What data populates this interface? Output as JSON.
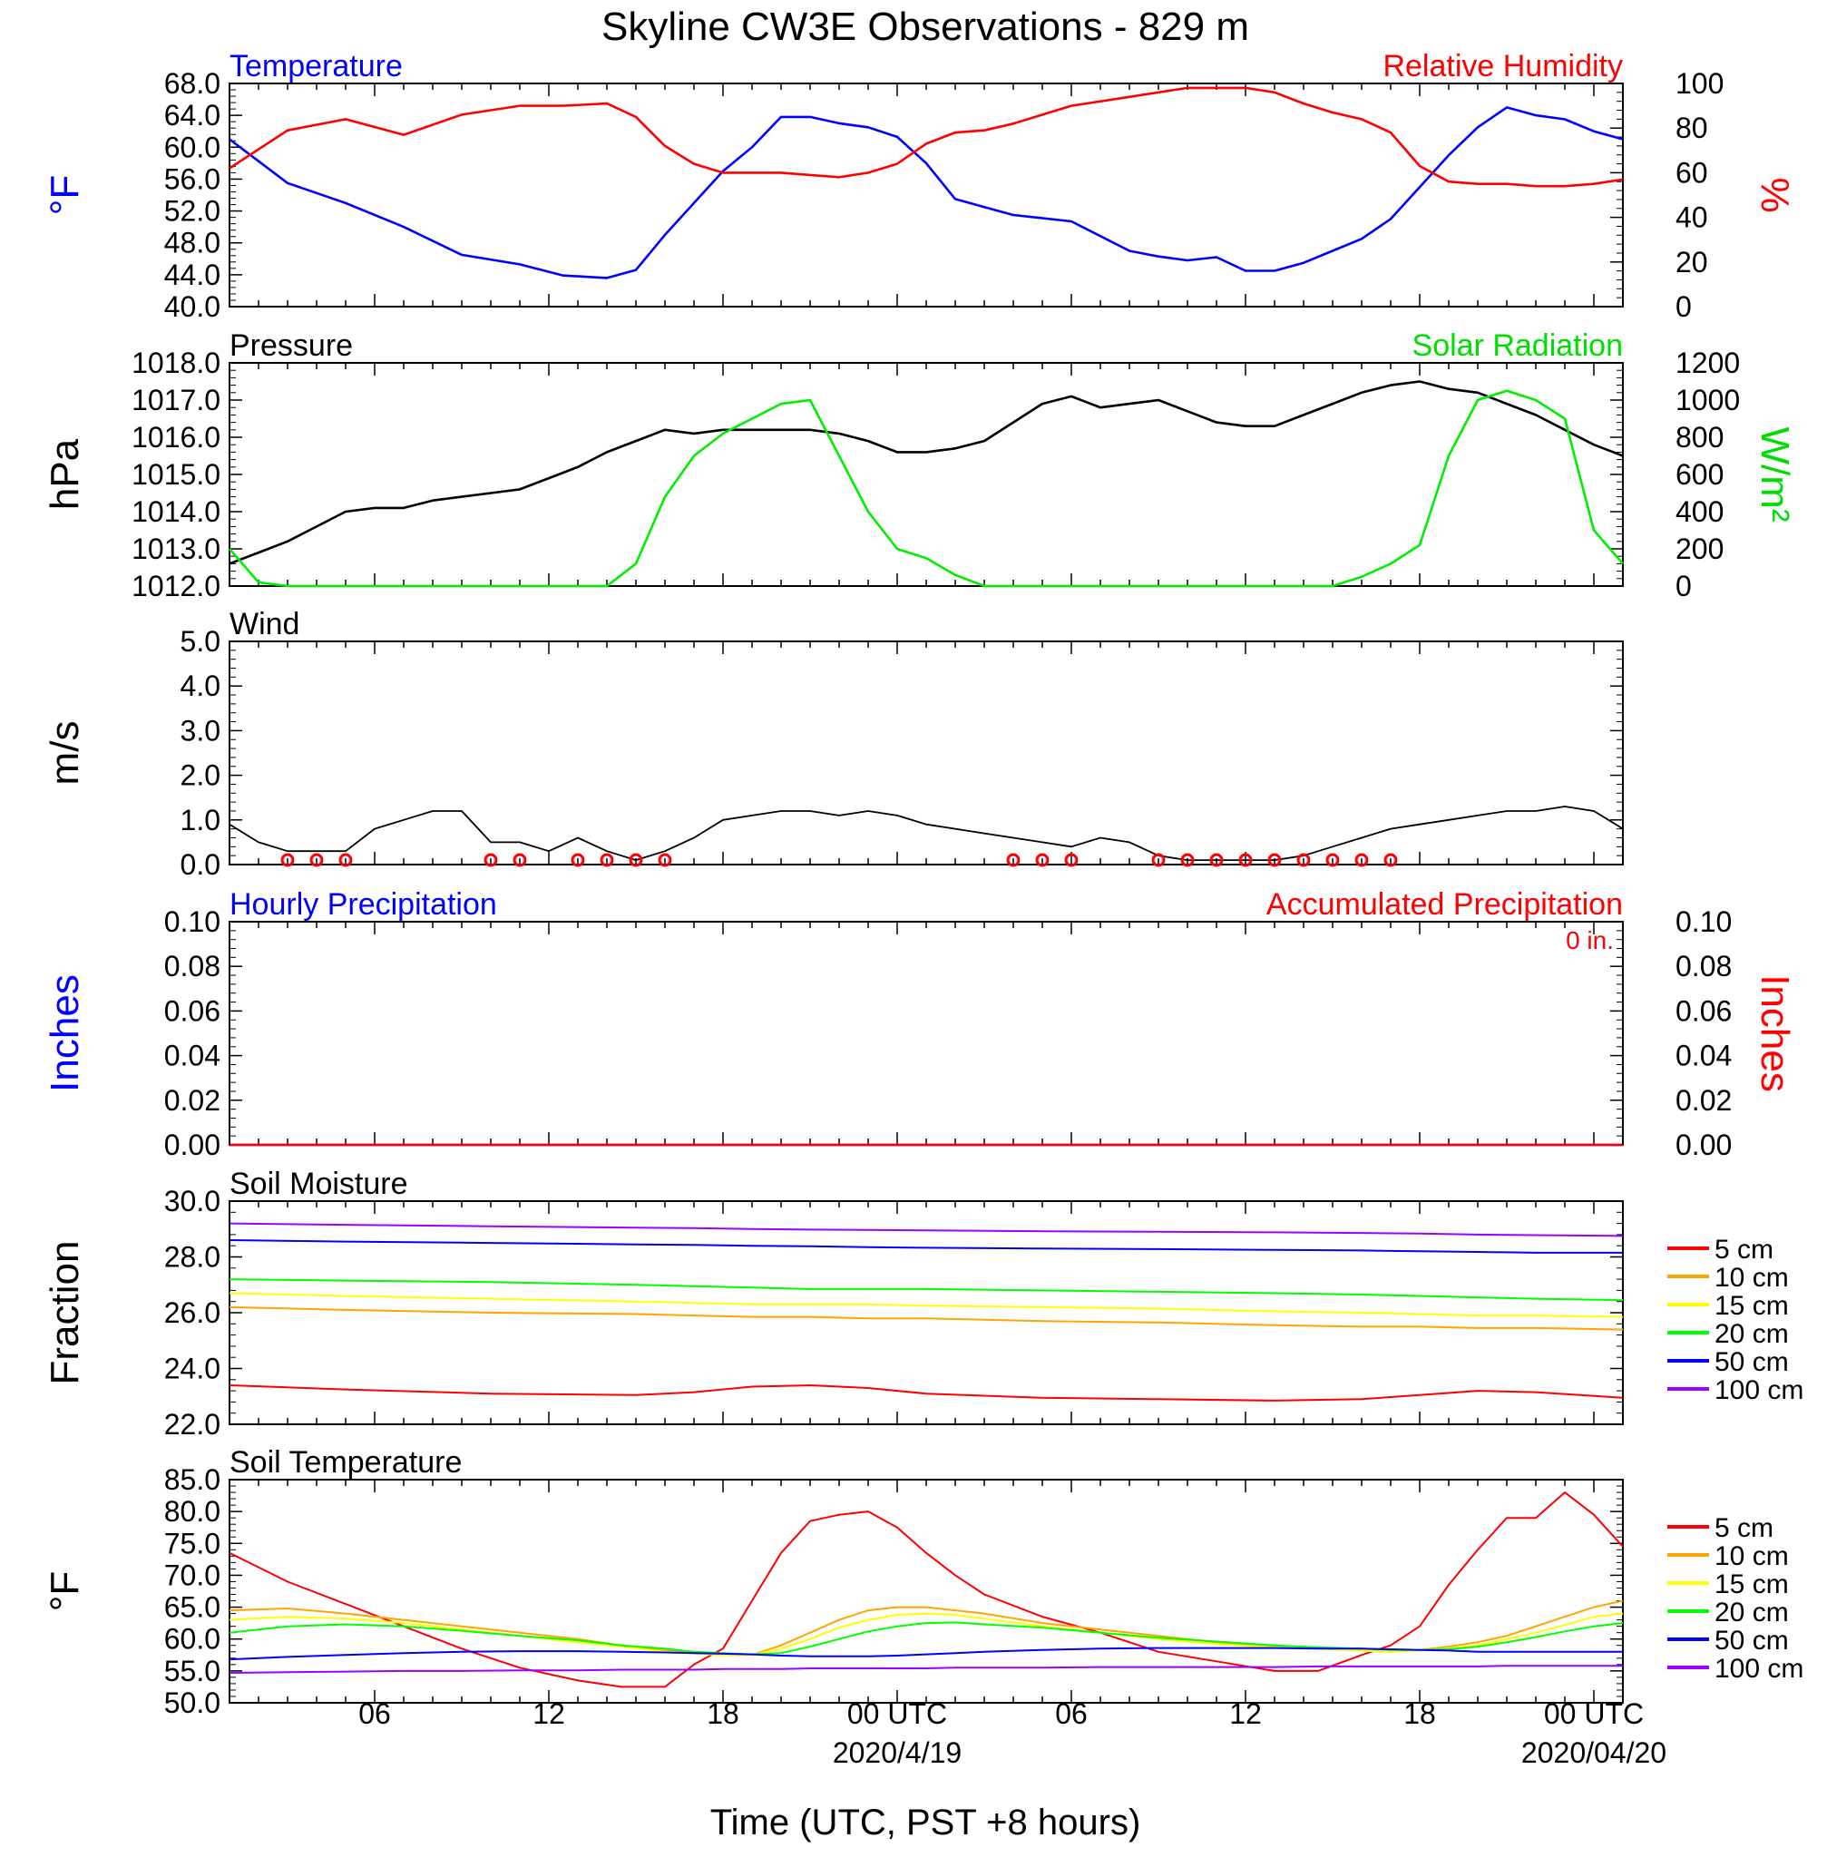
{
  "title": "Skyline CW3E Observations - 829 m",
  "x_axis": {
    "label": "Time (UTC, PST +8 hours)",
    "ticks": [
      "06",
      "12",
      "18",
      "00 UTC",
      "06",
      "12",
      "18",
      "00 UTC"
    ],
    "dates": [
      "2020/4/19",
      "2020/04/20"
    ]
  },
  "chart_data": [
    {
      "type": "line",
      "panel": "temperature-humidity",
      "left_title": "Temperature",
      "right_title": "Relative Humidity",
      "ylabel_left": "°F",
      "ylabel_right": "%",
      "ylim_left": [
        40.0,
        68.0
      ],
      "ylim_right": [
        0,
        100
      ],
      "yticks_left": [
        "68.0",
        "64.0",
        "60.0",
        "56.0",
        "52.0",
        "48.0",
        "44.0",
        "40.0"
      ],
      "yticks_right": [
        "100",
        "80",
        "60",
        "40",
        "20",
        "0"
      ],
      "x_hours": [
        1,
        3,
        5,
        7,
        9,
        11,
        12.5,
        14,
        15,
        16,
        17,
        18,
        19,
        20,
        21,
        22,
        23,
        24,
        25,
        26,
        27,
        28,
        30,
        32,
        33,
        34,
        35,
        36,
        37,
        38,
        39,
        40,
        41,
        42,
        43,
        44,
        45,
        46,
        47,
        48,
        49
      ],
      "series": [
        {
          "name": "Temperature",
          "color": "#0000ff",
          "axis": "left",
          "values": [
            61.0,
            55.5,
            53.0,
            50.0,
            46.5,
            45.3,
            43.9,
            43.6,
            44.6,
            49.0,
            53.0,
            57.0,
            60.0,
            63.8,
            63.8,
            63.0,
            62.5,
            61.3,
            58.0,
            53.5,
            52.5,
            51.5,
            50.7,
            47.0,
            46.3,
            45.8,
            46.2,
            44.5,
            44.5,
            45.5,
            47.0,
            48.5,
            51.0,
            55.0,
            59.0,
            62.5,
            65.0,
            64.0,
            63.5,
            62.0,
            61.0
          ]
        },
        {
          "name": "Relative Humidity",
          "color": "#ff0000",
          "axis": "right",
          "values": [
            62,
            79,
            84,
            77,
            86,
            90,
            90,
            91,
            85,
            72,
            64,
            60,
            60,
            60,
            59,
            58,
            60,
            64,
            73,
            78,
            79,
            82,
            90,
            94,
            96,
            98,
            98,
            98,
            96,
            91,
            87,
            84,
            78,
            63,
            56,
            55,
            55,
            54,
            54,
            55,
            57
          ]
        }
      ]
    },
    {
      "type": "line",
      "panel": "pressure-solar",
      "left_title": "Pressure",
      "right_title": "Solar Radiation",
      "ylabel_left": "hPa",
      "ylabel_right": "W/m²",
      "ylim_left": [
        1012.0,
        1018.0
      ],
      "ylim_right": [
        0,
        1200
      ],
      "yticks_left": [
        "1018.0",
        "1017.0",
        "1016.0",
        "1015.0",
        "1014.0",
        "1013.0",
        "1012.0"
      ],
      "yticks_right": [
        "1200",
        "1000",
        "800",
        "600",
        "400",
        "200",
        "0"
      ],
      "x_hours": [
        1,
        2,
        3,
        4,
        5,
        6,
        7,
        8,
        9,
        10,
        11,
        12,
        13,
        14,
        15,
        16,
        17,
        18,
        19,
        20,
        21,
        22,
        23,
        24,
        25,
        26,
        27,
        28,
        29,
        30,
        31,
        32,
        33,
        34,
        35,
        36,
        37,
        38,
        39,
        40,
        41,
        42,
        43,
        44,
        45,
        46,
        47,
        48,
        49
      ],
      "series": [
        {
          "name": "Pressure",
          "color": "#000000",
          "axis": "left",
          "values": [
            1012.6,
            1012.9,
            1013.2,
            1013.6,
            1014.0,
            1014.1,
            1014.1,
            1014.3,
            1014.4,
            1014.5,
            1014.6,
            1014.9,
            1015.2,
            1015.6,
            1015.9,
            1016.2,
            1016.1,
            1016.2,
            1016.2,
            1016.2,
            1016.2,
            1016.1,
            1015.9,
            1015.6,
            1015.6,
            1015.7,
            1015.9,
            1016.4,
            1016.9,
            1017.1,
            1016.8,
            1016.9,
            1017.0,
            1016.7,
            1016.4,
            1016.3,
            1016.3,
            1016.6,
            1016.9,
            1017.2,
            1017.4,
            1017.5,
            1017.3,
            1017.2,
            1016.9,
            1016.6,
            1016.2,
            1015.8,
            1015.5
          ]
        },
        {
          "name": "Solar Radiation",
          "color": "#00ee00",
          "axis": "right",
          "values": [
            200,
            20,
            0,
            0,
            0,
            0,
            0,
            0,
            0,
            0,
            0,
            0,
            0,
            0,
            120,
            480,
            700,
            820,
            900,
            980,
            1000,
            700,
            400,
            200,
            150,
            60,
            0,
            0,
            0,
            0,
            0,
            0,
            0,
            0,
            0,
            0,
            0,
            0,
            0,
            50,
            120,
            220,
            700,
            1000,
            1050,
            1000,
            900,
            300,
            120
          ]
        }
      ]
    },
    {
      "type": "line",
      "panel": "wind",
      "left_title": "Wind",
      "ylabel_left": "m/s",
      "ylim_left": [
        0.0,
        5.0
      ],
      "yticks_left": [
        "5.0",
        "4.0",
        "3.0",
        "2.0",
        "1.0",
        "0.0"
      ],
      "x_hours": [
        1,
        2,
        3,
        4,
        5,
        6,
        7,
        8,
        9,
        10,
        11,
        12,
        13,
        14,
        15,
        16,
        17,
        18,
        19,
        20,
        21,
        22,
        23,
        24,
        25,
        26,
        27,
        28,
        29,
        30,
        31,
        32,
        33,
        34,
        35,
        36,
        37,
        38,
        39,
        40,
        41,
        42,
        43,
        44,
        45,
        46,
        47,
        48,
        49
      ],
      "series": [
        {
          "name": "Wind speed",
          "color": "#000000",
          "axis": "left",
          "values": [
            0.9,
            0.5,
            0.3,
            0.3,
            0.3,
            0.8,
            1.0,
            1.2,
            1.2,
            0.5,
            0.5,
            0.3,
            0.6,
            0.3,
            0.1,
            0.3,
            0.6,
            1.0,
            1.1,
            1.2,
            1.2,
            1.1,
            1.2,
            1.1,
            0.9,
            0.8,
            0.7,
            0.6,
            0.5,
            0.4,
            0.6,
            0.5,
            0.2,
            0.1,
            0.1,
            0.1,
            0.1,
            0.2,
            0.4,
            0.6,
            0.8,
            0.9,
            1.0,
            1.1,
            1.2,
            1.2,
            1.3,
            1.2,
            0.8
          ]
        }
      ],
      "calm_markers_hours": [
        3,
        4,
        5,
        10,
        11,
        13,
        14,
        15,
        16,
        28,
        29,
        30,
        33,
        34,
        35,
        36,
        37,
        38,
        39,
        40,
        41
      ]
    },
    {
      "type": "line",
      "panel": "precipitation",
      "left_title": "Hourly Precipitation",
      "right_title": "Accumulated Precipitation",
      "annotation": "0 in.",
      "ylabel_left": "Inches",
      "ylabel_right": "Inches",
      "ylim_left": [
        0.0,
        0.1
      ],
      "ylim_right": [
        0.0,
        0.1
      ],
      "yticks_left": [
        "0.10",
        "0.08",
        "0.06",
        "0.04",
        "0.02",
        "0.00"
      ],
      "yticks_right": [
        "0.10",
        "0.08",
        "0.06",
        "0.04",
        "0.02",
        "0.00"
      ],
      "x_hours": [
        1,
        49
      ],
      "series": [
        {
          "name": "Hourly Precipitation",
          "color": "#0000ff",
          "axis": "left",
          "values": [
            0,
            0
          ]
        },
        {
          "name": "Accumulated Precipitation",
          "color": "#ff0000",
          "axis": "right",
          "values": [
            0,
            0
          ]
        }
      ]
    },
    {
      "type": "line",
      "panel": "soil-moisture",
      "left_title": "Soil Moisture",
      "ylabel_left": "Fraction",
      "ylim_left": [
        22.0,
        30.0
      ],
      "yticks_left": [
        "30.0",
        "28.0",
        "26.0",
        "24.0",
        "22.0"
      ],
      "x_hours": [
        1,
        5,
        10,
        15,
        17,
        19,
        21,
        23,
        25,
        29,
        33,
        37,
        40,
        42,
        44,
        46,
        49
      ],
      "series": [
        {
          "name": "5 cm",
          "color": "#ff0000",
          "values": [
            23.4,
            23.25,
            23.1,
            23.05,
            23.15,
            23.35,
            23.4,
            23.3,
            23.1,
            22.95,
            22.9,
            22.85,
            22.9,
            23.05,
            23.2,
            23.15,
            22.95
          ]
        },
        {
          "name": "10 cm",
          "color": "#ffa500",
          "values": [
            26.2,
            26.1,
            26.0,
            25.95,
            25.9,
            25.85,
            25.85,
            25.8,
            25.8,
            25.7,
            25.65,
            25.55,
            25.5,
            25.5,
            25.45,
            25.45,
            25.4
          ]
        },
        {
          "name": "15 cm",
          "color": "#ffff00",
          "values": [
            26.7,
            26.6,
            26.5,
            26.4,
            26.35,
            26.3,
            26.3,
            26.3,
            26.25,
            26.2,
            26.15,
            26.05,
            26.0,
            25.95,
            25.9,
            25.9,
            25.85
          ]
        },
        {
          "name": "20 cm",
          "color": "#00ff00",
          "values": [
            27.2,
            27.15,
            27.1,
            27.0,
            26.95,
            26.9,
            26.85,
            26.85,
            26.85,
            26.8,
            26.75,
            26.7,
            26.65,
            26.6,
            26.55,
            26.5,
            26.45
          ]
        },
        {
          "name": "50 cm",
          "color": "#0000ff",
          "values": [
            28.6,
            28.55,
            28.5,
            28.45,
            28.43,
            28.4,
            28.38,
            28.35,
            28.33,
            28.3,
            28.28,
            28.25,
            28.23,
            28.2,
            28.18,
            28.15,
            28.15
          ]
        },
        {
          "name": "100 cm",
          "color": "#9900ff",
          "values": [
            29.2,
            29.15,
            29.1,
            29.05,
            29.03,
            29.0,
            28.98,
            28.97,
            28.95,
            28.92,
            28.9,
            28.88,
            28.86,
            28.84,
            28.8,
            28.78,
            28.75
          ]
        }
      ]
    },
    {
      "type": "line",
      "panel": "soil-temperature",
      "left_title": "Soil Temperature",
      "ylabel_left": "°F",
      "ylim_left": [
        50.0,
        85.0
      ],
      "yticks_left": [
        "85.0",
        "80.0",
        "75.0",
        "70.0",
        "65.0",
        "60.0",
        "55.0",
        "50.0"
      ],
      "x_hours": [
        1,
        3,
        5,
        7,
        9,
        11,
        13,
        14.5,
        16,
        17,
        18,
        19,
        20,
        21,
        22,
        23,
        24,
        25,
        26,
        27,
        29,
        31,
        33,
        35,
        37,
        38.5,
        40,
        41,
        42,
        43,
        44,
        45,
        46,
        47,
        48,
        49
      ],
      "series": [
        {
          "name": "5 cm",
          "color": "#ff0000",
          "values": [
            73.5,
            69.0,
            65.5,
            62.0,
            58.5,
            55.5,
            53.5,
            52.5,
            52.5,
            56.0,
            58.5,
            66.0,
            73.5,
            78.5,
            79.5,
            80.0,
            77.5,
            73.5,
            70.0,
            67.0,
            63.5,
            61.0,
            58.0,
            56.5,
            55.0,
            55.0,
            57.5,
            59.0,
            62.0,
            68.5,
            74.0,
            79.0,
            79.0,
            83.0,
            79.5,
            74.5
          ]
        },
        {
          "name": "10 cm",
          "color": "#ffa500",
          "values": [
            64.5,
            64.8,
            64.0,
            63.0,
            62.0,
            61.0,
            60.0,
            59.0,
            58.2,
            57.8,
            57.5,
            57.5,
            59.0,
            61.0,
            63.0,
            64.5,
            65.0,
            65.0,
            64.5,
            64.0,
            62.5,
            61.5,
            60.5,
            59.5,
            58.8,
            58.5,
            58.2,
            58.0,
            58.3,
            58.8,
            59.5,
            60.5,
            62.0,
            63.5,
            65.0,
            66.0
          ]
        },
        {
          "name": "15 cm",
          "color": "#ffff00",
          "values": [
            63.0,
            63.5,
            63.2,
            62.5,
            61.5,
            60.5,
            59.5,
            58.8,
            58.0,
            57.7,
            57.5,
            57.5,
            58.5,
            60.0,
            61.8,
            63.0,
            63.8,
            64.0,
            63.8,
            63.2,
            62.0,
            61.0,
            60.0,
            59.2,
            58.7,
            58.5,
            58.2,
            58.0,
            58.2,
            58.5,
            59.0,
            60.0,
            61.0,
            62.2,
            63.5,
            64.0
          ]
        },
        {
          "name": "20 cm",
          "color": "#00ff00",
          "values": [
            61.0,
            62.0,
            62.3,
            62.0,
            61.3,
            60.5,
            59.8,
            59.0,
            58.5,
            58.0,
            57.8,
            57.6,
            57.8,
            58.8,
            60.0,
            61.2,
            62.0,
            62.5,
            62.6,
            62.3,
            61.8,
            61.0,
            60.2,
            59.6,
            59.0,
            58.7,
            58.5,
            58.3,
            58.3,
            58.4,
            58.8,
            59.5,
            60.3,
            61.2,
            62.0,
            62.5
          ]
        },
        {
          "name": "50 cm",
          "color": "#0000ff",
          "values": [
            56.8,
            57.2,
            57.5,
            57.8,
            58.0,
            58.1,
            58.1,
            58.0,
            57.9,
            57.8,
            57.7,
            57.6,
            57.4,
            57.3,
            57.3,
            57.3,
            57.4,
            57.6,
            57.8,
            58.0,
            58.3,
            58.5,
            58.6,
            58.6,
            58.6,
            58.5,
            58.5,
            58.4,
            58.3,
            58.2,
            58.0,
            58.0,
            58.0,
            58.0,
            58.0,
            58.0
          ]
        },
        {
          "name": "100 cm",
          "color": "#9900ff",
          "values": [
            54.7,
            54.8,
            54.9,
            55.0,
            55.0,
            55.1,
            55.1,
            55.2,
            55.2,
            55.2,
            55.3,
            55.3,
            55.3,
            55.4,
            55.4,
            55.4,
            55.4,
            55.4,
            55.5,
            55.5,
            55.5,
            55.6,
            55.6,
            55.6,
            55.6,
            55.7,
            55.7,
            55.7,
            55.7,
            55.7,
            55.7,
            55.8,
            55.8,
            55.8,
            55.8,
            55.8
          ]
        }
      ]
    }
  ]
}
